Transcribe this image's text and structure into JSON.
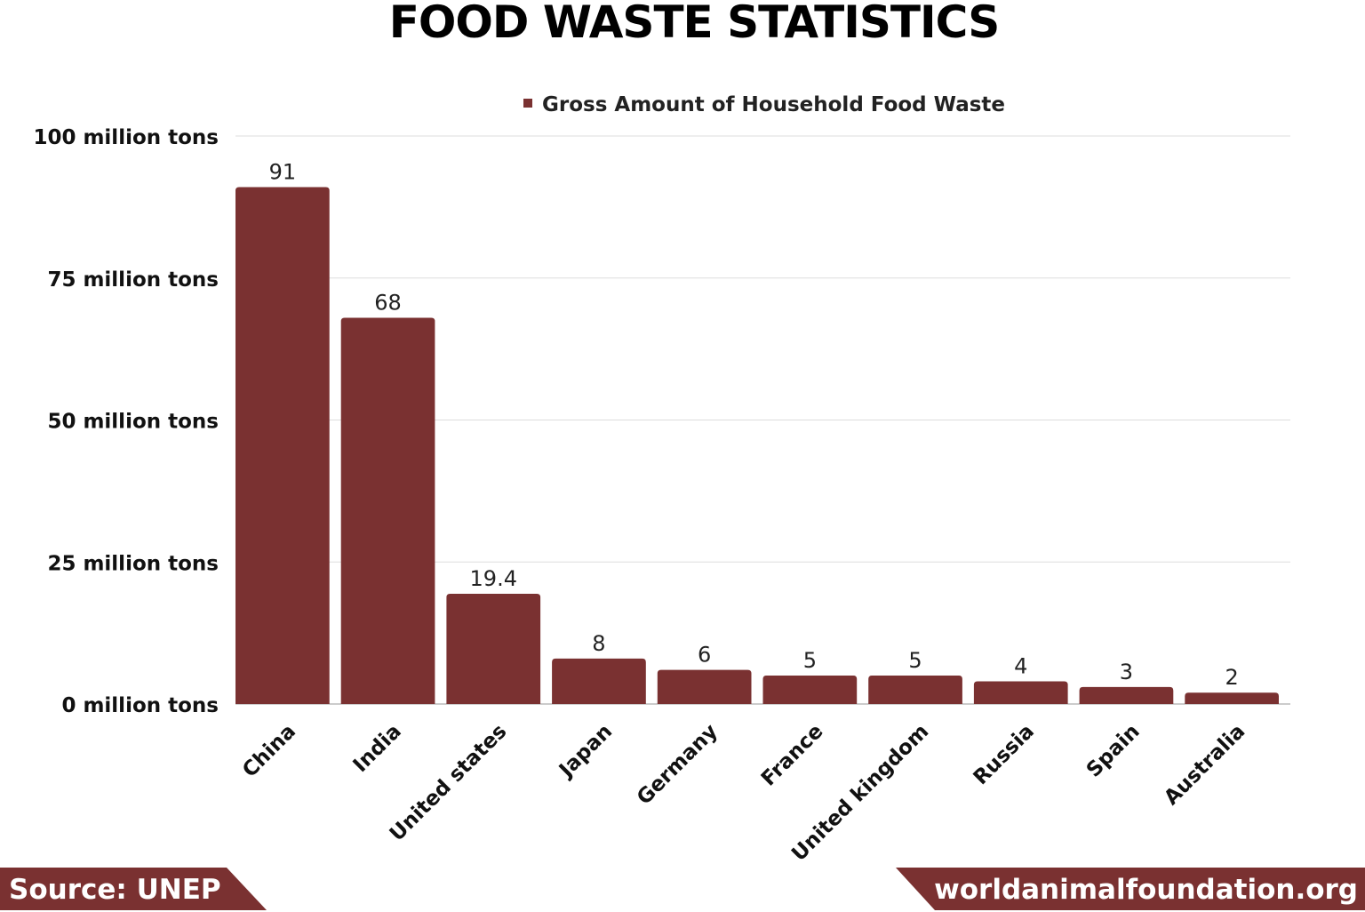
{
  "chart_data": {
    "type": "bar",
    "title": "FOOD WASTE STATISTICS",
    "categories": [
      "China",
      "India",
      "United states",
      "Japan",
      "Germany",
      "France",
      "United kingdom",
      "Russia",
      "Spain",
      "Australia"
    ],
    "series": [
      {
        "name": "Gross Amount of Household Food Waste",
        "values": [
          91,
          68,
          19.4,
          8,
          6,
          5,
          5,
          4,
          3,
          2
        ],
        "color": "#7a3131"
      }
    ],
    "data_labels": [
      "91",
      "68",
      "19.4",
      "8",
      "6",
      "5",
      "5",
      "4",
      "3",
      "2"
    ],
    "yticks": [
      0,
      25,
      50,
      75,
      100
    ],
    "ytick_labels": [
      "0 million tons",
      "25 million tons",
      "50 million tons",
      "75 million tons",
      "100 million tons"
    ],
    "ylim": [
      0,
      100
    ],
    "grid": true,
    "legend": "top-center"
  },
  "footer": {
    "source": "Source: UNEP",
    "site": "worldanimalfoundation.org"
  }
}
